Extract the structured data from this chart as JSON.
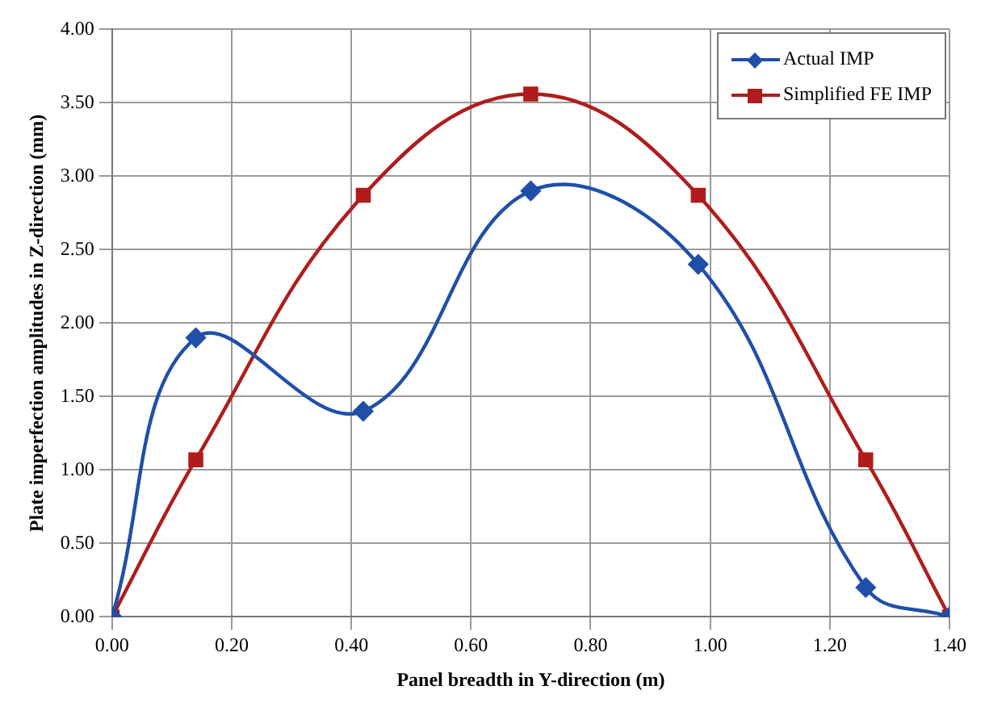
{
  "chart_data": {
    "type": "line",
    "xlabel": "Panel breadth in Y-direction (m)",
    "ylabel": "Plate imperfection amplitudes in Z-direction (mm)",
    "x": [
      0,
      0.14,
      0.42,
      0.7,
      0.98,
      1.26,
      1.4
    ],
    "series": [
      {
        "name": "Actual IMP",
        "color": "#1f4fa8",
        "marker": "diamond",
        "values": [
          0,
          1.9,
          1.4,
          2.9,
          2.4,
          0.2,
          0
        ]
      },
      {
        "name": "Simplified FE IMP",
        "color": "#b01c1c",
        "marker": "square",
        "values": [
          0,
          1.07,
          2.87,
          3.56,
          2.87,
          1.07,
          0
        ]
      }
    ],
    "xlim": [
      0,
      1.4
    ],
    "xticks": [
      {
        "value": 0,
        "label": "0.00"
      },
      {
        "value": 0.2,
        "label": "0.20"
      },
      {
        "value": 0.4,
        "label": "0.40"
      },
      {
        "value": 0.6,
        "label": "0.60"
      },
      {
        "value": 0.8,
        "label": "0.80"
      },
      {
        "value": 1,
        "label": "1.00"
      },
      {
        "value": 1.2,
        "label": "1.20"
      },
      {
        "value": 1.4,
        "label": "1.40"
      }
    ],
    "ylim": [
      0,
      4
    ],
    "yticks": [
      {
        "value": 0,
        "label": "0.00"
      },
      {
        "value": 0.5,
        "label": "0.50"
      },
      {
        "value": 1,
        "label": "1.00"
      },
      {
        "value": 1.5,
        "label": "1.50"
      },
      {
        "value": 2,
        "label": "2.00"
      },
      {
        "value": 2.5,
        "label": "2.50"
      },
      {
        "value": 3,
        "label": "3.00"
      },
      {
        "value": 3.5,
        "label": "3.50"
      },
      {
        "value": 4,
        "label": "4.00"
      }
    ],
    "grid": true,
    "legend": "top right",
    "line_style": "solid"
  }
}
